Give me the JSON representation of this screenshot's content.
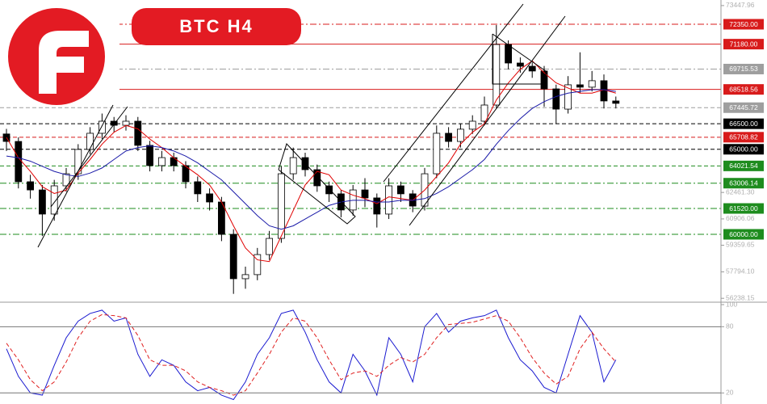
{
  "chart_data": [
    {
      "type": "candlestick",
      "title": "BTC H4",
      "up_color": "#ffffff",
      "down_color": "#000000",
      "open": [
        65900,
        65460,
        63090,
        62610,
        61190,
        62850,
        63560,
        64990,
        65940,
        66650,
        66410,
        66650,
        65230,
        64040,
        64510,
        64040,
        63090,
        62380,
        61900,
        60000,
        57390,
        57630,
        58810,
        59760,
        63560,
        64510,
        63800,
        62850,
        62380,
        61430,
        62610,
        62140,
        61190,
        62850,
        62380,
        61660,
        63560,
        65940,
        65460,
        66180,
        66650,
        67600,
        71160,
        70070,
        69880,
        69600,
        68550,
        67360,
        68790,
        68650,
        69030,
        67840
      ],
      "high": [
        66200,
        65700,
        63500,
        62900,
        63200,
        63900,
        65300,
        66300,
        67100,
        66900,
        67000,
        66900,
        65500,
        64900,
        64800,
        64300,
        63400,
        62700,
        62200,
        60300,
        58100,
        59200,
        60200,
        64000,
        65100,
        64800,
        64100,
        63100,
        62600,
        62900,
        63300,
        62400,
        63300,
        63100,
        62600,
        63900,
        66400,
        66300,
        66500,
        67000,
        68100,
        72300,
        71400,
        70400,
        70100,
        69900,
        68800,
        69300,
        70700,
        69600,
        69400,
        68100
      ],
      "low": [
        64900,
        62700,
        62100,
        59900,
        60800,
        62500,
        63200,
        64700,
        65600,
        66000,
        66100,
        64900,
        63700,
        63700,
        63700,
        62700,
        61900,
        61400,
        59600,
        56500,
        56800,
        57300,
        58500,
        59500,
        63200,
        63400,
        62500,
        61900,
        61000,
        61100,
        61600,
        60400,
        60900,
        61900,
        61300,
        61400,
        63300,
        65100,
        65100,
        65900,
        66400,
        67400,
        69700,
        69500,
        69200,
        67500,
        66500,
        67100,
        68300,
        68400,
        67400,
        67400
      ],
      "close": [
        65460,
        63090,
        62610,
        61190,
        62850,
        63560,
        64990,
        65940,
        66650,
        66410,
        66650,
        65230,
        64040,
        64510,
        64040,
        63090,
        62380,
        61900,
        60000,
        57390,
        57630,
        58810,
        59760,
        63560,
        64510,
        63800,
        62850,
        62380,
        61430,
        62610,
        62140,
        61190,
        62850,
        62380,
        61660,
        63560,
        65940,
        65460,
        66180,
        66650,
        67600,
        71160,
        70070,
        69880,
        69600,
        68550,
        67360,
        68790,
        68650,
        69030,
        67840,
        67700
      ],
      "series": [
        {
          "color": "#e00000",
          "values": [
            65700,
            64500,
            63700,
            62800,
            62400,
            62600,
            63600,
            64400,
            65300,
            66000,
            66400,
            66200,
            65600,
            65100,
            64500,
            64000,
            63500,
            62900,
            61900,
            60500,
            59200,
            58500,
            58400,
            59900,
            61400,
            62900,
            63700,
            63500,
            62600,
            62300,
            62100,
            61800,
            62200,
            62100,
            62000,
            62600,
            63400,
            64200,
            65300,
            66000,
            66500,
            67900,
            68900,
            69700,
            70200,
            69500,
            68900,
            68600,
            68300,
            68300,
            68500,
            68300
          ]
        },
        {
          "color": "#1a1aa8",
          "values": [
            64600,
            64500,
            64300,
            64000,
            63700,
            63500,
            63400,
            63600,
            63900,
            64400,
            64900,
            65100,
            65200,
            65100,
            64900,
            64600,
            64200,
            63700,
            63200,
            62500,
            61800,
            61100,
            60500,
            60300,
            60500,
            60900,
            61300,
            61700,
            61900,
            62000,
            62000,
            61900,
            61900,
            62000,
            62000,
            62100,
            62400,
            62800,
            63300,
            63800,
            64400,
            65300,
            66100,
            66800,
            67400,
            67800,
            68100,
            68300,
            68400,
            68500,
            68500,
            68400
          ]
        }
      ],
      "ylim": [
        56105,
        73775
      ],
      "yticks": [
        {
          "value": 73447.96,
          "label": "73447.96"
        },
        {
          "value": 62461.3,
          "label": "62461.30"
        },
        {
          "value": 60906.06,
          "label": "60906.06"
        },
        {
          "value": 59359.65,
          "label": "59359.65"
        },
        {
          "value": 57794.1,
          "label": "57794.10"
        },
        {
          "value": 56238.15,
          "label": "56238.15"
        }
      ],
      "levels": [
        {
          "value": 72350,
          "label": "72350.00",
          "color": "#d81b1b",
          "style": "dashdot"
        },
        {
          "value": 71180,
          "label": "71180.00",
          "color": "#d81b1b",
          "style": "solid"
        },
        {
          "value": 69715.53,
          "label": "69715.53",
          "color": "#9e9e9e",
          "style": "dashdot"
        },
        {
          "value": 68518.56,
          "label": "68518.56",
          "color": "#d81b1b",
          "style": "solid"
        },
        {
          "value": 67445.72,
          "label": "67445.72",
          "color": "#9e9e9e",
          "style": "dashed"
        },
        {
          "value": 66500,
          "label": "66500.00",
          "color": "#000000",
          "style": "dashed"
        },
        {
          "value": 65708.82,
          "label": "65708.82",
          "color": "#d81b1b",
          "style": "dashed"
        },
        {
          "value": 65000,
          "label": "65000.00",
          "color": "#000000",
          "style": "dashed"
        },
        {
          "value": 64021.54,
          "label": "64021.54",
          "color": "#1e8c1e",
          "style": "dashed"
        },
        {
          "value": 63006.14,
          "label": "63006.14",
          "color": "#1e8c1e",
          "style": "dashdot"
        },
        {
          "value": 61520,
          "label": "61520.00",
          "color": "#1e8c1e",
          "style": "dashdot"
        },
        {
          "value": 60000,
          "label": "60000.00",
          "color": "#1e8c1e",
          "style": "dashdot"
        }
      ]
    },
    {
      "type": "line",
      "series": [
        {
          "color": "#1a1ad0",
          "style": "solid",
          "values": [
            60,
            35,
            20,
            18,
            45,
            70,
            85,
            92,
            95,
            85,
            88,
            55,
            35,
            50,
            45,
            30,
            22,
            25,
            18,
            14,
            30,
            55,
            70,
            92,
            95,
            75,
            50,
            30,
            20,
            55,
            40,
            18,
            70,
            55,
            30,
            80,
            92,
            75,
            85,
            88,
            90,
            95,
            70,
            50,
            40,
            25,
            20,
            55,
            90,
            75,
            30,
            50
          ]
        },
        {
          "color": "#e02020",
          "style": "dashed",
          "values": [
            65,
            50,
            32,
            22,
            30,
            48,
            70,
            85,
            91,
            90,
            88,
            72,
            50,
            45,
            45,
            40,
            30,
            25,
            22,
            18,
            22,
            38,
            55,
            75,
            88,
            85,
            70,
            50,
            32,
            38,
            40,
            35,
            45,
            52,
            48,
            55,
            70,
            82,
            83,
            84,
            87,
            90,
            85,
            70,
            52,
            38,
            28,
            35,
            60,
            75,
            60,
            48
          ]
        }
      ],
      "ylim": [
        11,
        100
      ],
      "yticks": [
        100,
        80,
        20
      ]
    }
  ]
}
